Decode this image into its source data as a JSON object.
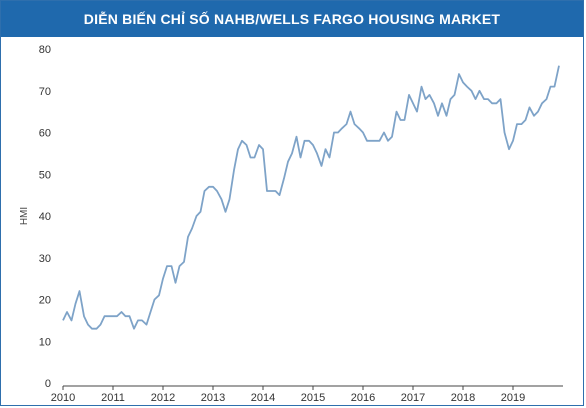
{
  "chart_data": {
    "type": "line",
    "title": "DIỄN BIẾN CHỈ SỐ NAHB/WELLS FARGO HOUSING MARKET",
    "xlabel": "",
    "ylabel": "HMI",
    "xlim": [
      2010,
      2020
    ],
    "ylim": [
      0,
      80
    ],
    "yticks": [
      0,
      10,
      20,
      30,
      40,
      50,
      60,
      70,
      80
    ],
    "xticks": [
      2010,
      2011,
      2012,
      2013,
      2014,
      2015,
      2016,
      2017,
      2018,
      2019
    ],
    "xtick_labels": [
      "2010",
      "2011",
      "2012",
      "2013",
      "2014",
      "2015",
      "2016",
      "2017",
      "2018",
      "2019"
    ],
    "grid": false,
    "legend": "none",
    "line_color": "#7ea3c8",
    "series": [
      {
        "x": [
          2010.0,
          2010.08,
          2010.17,
          2010.25,
          2010.33,
          2010.42,
          2010.5,
          2010.58,
          2010.67,
          2010.75,
          2010.83,
          2010.92,
          2011.0,
          2011.08,
          2011.17,
          2011.25,
          2011.33,
          2011.42,
          2011.5,
          2011.58,
          2011.67,
          2011.75,
          2011.83,
          2011.92,
          2012.0,
          2012.08,
          2012.17,
          2012.25,
          2012.33,
          2012.42,
          2012.5,
          2012.58,
          2012.67,
          2012.75,
          2012.83,
          2012.92,
          2013.0,
          2013.08,
          2013.17,
          2013.25,
          2013.33,
          2013.42,
          2013.5,
          2013.58,
          2013.67,
          2013.75,
          2013.83,
          2013.92,
          2014.0,
          2014.08,
          2014.17,
          2014.25,
          2014.33,
          2014.42,
          2014.5,
          2014.58,
          2014.67,
          2014.75,
          2014.83,
          2014.92,
          2015.0,
          2015.08,
          2015.17,
          2015.25,
          2015.33,
          2015.42,
          2015.5,
          2015.58,
          2015.67,
          2015.75,
          2015.83,
          2015.92,
          2016.0,
          2016.08,
          2016.17,
          2016.25,
          2016.33,
          2016.42,
          2016.5,
          2016.58,
          2016.67,
          2016.75,
          2016.83,
          2016.92,
          2017.0,
          2017.08,
          2017.17,
          2017.25,
          2017.33,
          2017.42,
          2017.5,
          2017.58,
          2017.67,
          2017.75,
          2017.83,
          2017.92,
          2018.0,
          2018.08,
          2018.17,
          2018.25,
          2018.33,
          2018.42,
          2018.5,
          2018.58,
          2018.67,
          2018.75,
          2018.83,
          2018.92,
          2019.0,
          2019.08,
          2019.17,
          2019.25,
          2019.33,
          2019.42,
          2019.5,
          2019.58,
          2019.67,
          2019.75,
          2019.83,
          2019.92
        ],
        "y": [
          15,
          17,
          15,
          19,
          22,
          16,
          14,
          13,
          13,
          14,
          16,
          16,
          16,
          16,
          17,
          16,
          16,
          13,
          15,
          15,
          14,
          17,
          20,
          21,
          25,
          28,
          28,
          24,
          28,
          29,
          35,
          37,
          40,
          41,
          46,
          47,
          47,
          46,
          44,
          41,
          44,
          51,
          56,
          58,
          57,
          54,
          54,
          57,
          56,
          46,
          46,
          46,
          45,
          49,
          53,
          55,
          59,
          54,
          58,
          58,
          57,
          55,
          52,
          56,
          54,
          60,
          60,
          61,
          62,
          65,
          62,
          61,
          60,
          58,
          58,
          58,
          58,
          60,
          58,
          59,
          65,
          63,
          63,
          69,
          67,
          65,
          71,
          68,
          69,
          67,
          64,
          67,
          64,
          68,
          69,
          74,
          72,
          71,
          70,
          68,
          70,
          68,
          68,
          67,
          67,
          68,
          60,
          56,
          58,
          62,
          62,
          63,
          66,
          64,
          65,
          67,
          68,
          71,
          71,
          76
        ]
      }
    ]
  }
}
